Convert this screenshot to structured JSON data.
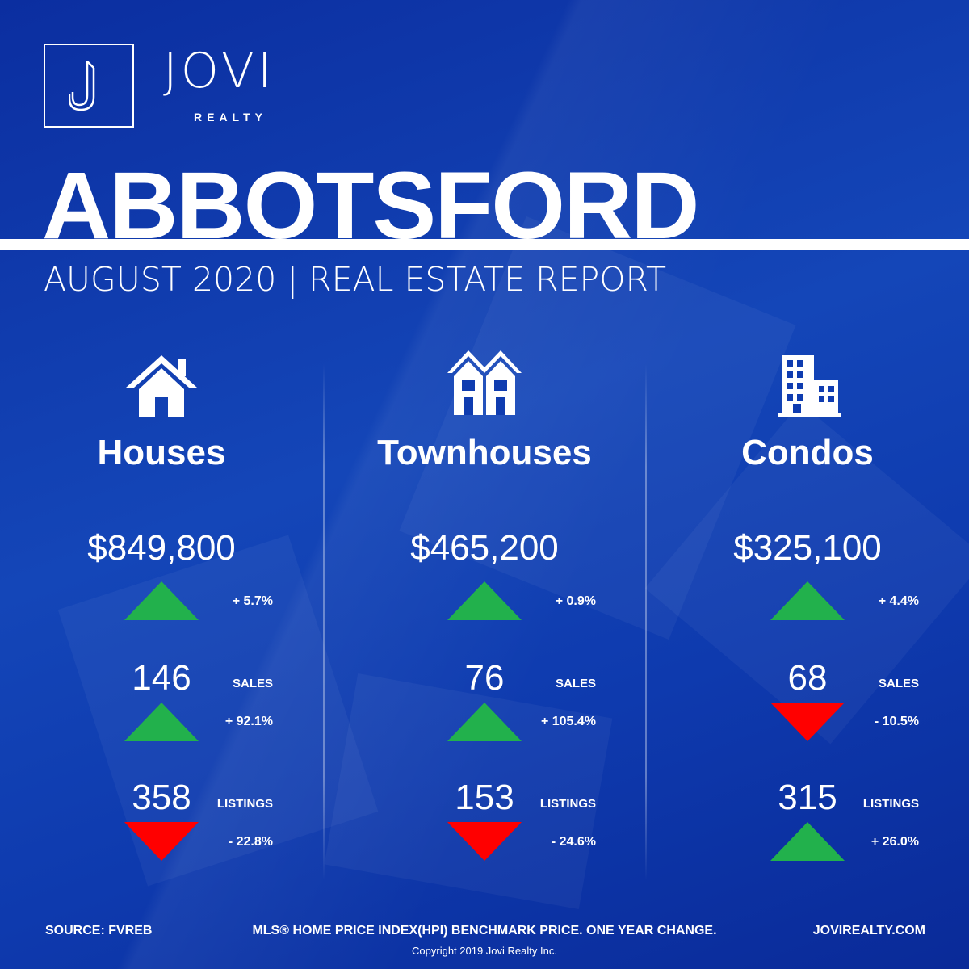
{
  "brand": {
    "name": "JOVI",
    "sub": "REALTY",
    "logo_letter": "J"
  },
  "headline": "ABBOTSFORD",
  "subtitle": "AUGUST 2020 | REAL ESTATE REPORT",
  "colors": {
    "background": "#0d33a8",
    "up": "#22b14c",
    "down": "#ff0000",
    "text": "#ffffff"
  },
  "categories": [
    {
      "icon": "house-icon",
      "title": "Houses",
      "price": "$849,800",
      "price_change": "+ 5.7%",
      "price_dir": "up",
      "sales": "146",
      "sales_label": "SALES",
      "sales_change": "+ 92.1%",
      "sales_dir": "up",
      "listings": "358",
      "listings_label": "LISTINGS",
      "listings_change": "- 22.8%",
      "listings_dir": "down"
    },
    {
      "icon": "townhouse-icon",
      "title": "Townhouses",
      "price": "$465,200",
      "price_change": "+ 0.9%",
      "price_dir": "up",
      "sales": "76",
      "sales_label": "SALES",
      "sales_change": "+ 105.4%",
      "sales_dir": "up",
      "listings": "153",
      "listings_label": "LISTINGS",
      "listings_change": "- 24.6%",
      "listings_dir": "down"
    },
    {
      "icon": "building-icon",
      "title": "Condos",
      "price": "$325,100",
      "price_change": "+ 4.4%",
      "price_dir": "up",
      "sales": "68",
      "sales_label": "SALES",
      "sales_change": "- 10.5%",
      "sales_dir": "down",
      "listings": "315",
      "listings_label": "LISTINGS",
      "listings_change": "+ 26.0%",
      "listings_dir": "up"
    }
  ],
  "footer": {
    "source": "SOURCE:  FVREB",
    "note": "MLS® HOME PRICE INDEX(HPI) BENCHMARK PRICE. ONE YEAR CHANGE.",
    "website": "JOVIREALTY.COM",
    "copyright": "Copyright 2019 Jovi Realty Inc."
  }
}
